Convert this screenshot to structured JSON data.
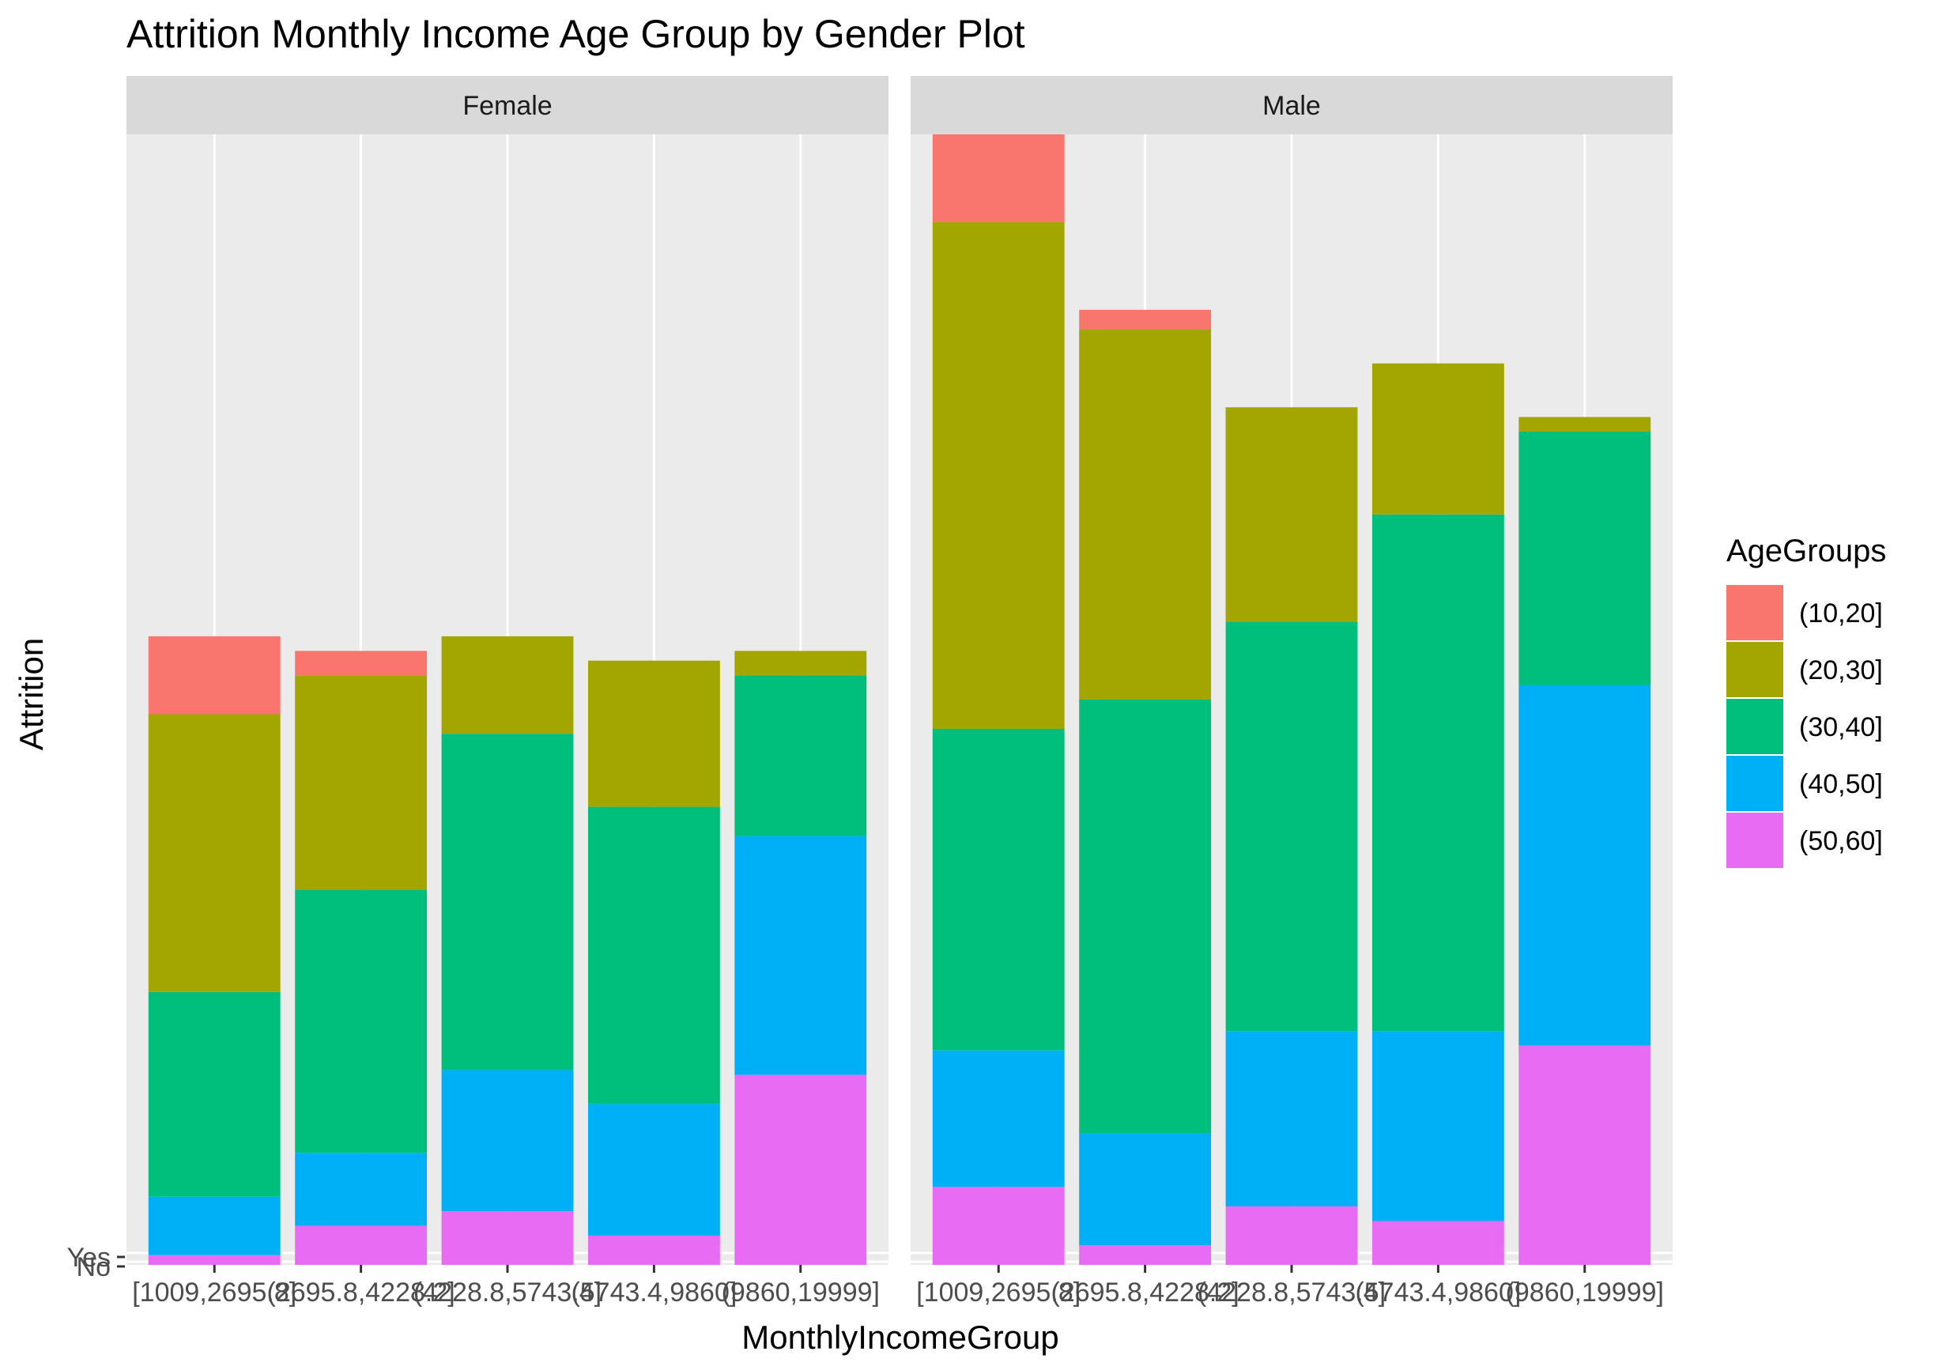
{
  "chart_data": {
    "type": "bar",
    "stacked": true,
    "title": "Attrition Monthly Income Age Group by Gender Plot",
    "xlabel": "MonthlyIncomeGroup",
    "ylabel": "Attrition",
    "y_tick_labels": [
      "No",
      "Yes"
    ],
    "facets": [
      "Female",
      "Male"
    ],
    "categories": [
      "[1009,2695.8]",
      "(2695.8,4228.2]",
      "(4228.8,5743.4]",
      "(5743.4,9860]",
      "(9860,19999]"
    ],
    "legend": {
      "title": "AgeGroups",
      "position": "right",
      "entries": [
        "(10,20]",
        "(20,30]",
        "(30,40]",
        "(40,50]",
        "(50,60]"
      ]
    },
    "colors": {
      "(10,20]": "#F8766D",
      "(20,30]": "#A3A500",
      "(30,40]": "#00BF7D",
      "(40,50]": "#00B0F6",
      "(50,60]": "#E76BF3"
    },
    "panel_background": "#EBEBEB",
    "strip_background": "#D9D9D9",
    "grid": true,
    "ylim": [
      0,
      116
    ],
    "series": [
      {
        "facet": "Female",
        "values": {
          "(50,60]": [
            1,
            4,
            5.5,
            3,
            19.5
          ],
          "(40,50]": [
            6,
            7.5,
            14.5,
            13.5,
            24.5
          ],
          "(30,40]": [
            21,
            27,
            34.5,
            30.5,
            16.5
          ],
          "(20,30]": [
            28.5,
            22,
            10,
            15,
            2.5
          ],
          "(10,20]": [
            8,
            2.5,
            0,
            0,
            0
          ]
        }
      },
      {
        "facet": "Male",
        "values": {
          "(50,60]": [
            8,
            2,
            6,
            4.5,
            22.5
          ],
          "(40,50]": [
            14,
            11.5,
            18,
            19.5,
            37
          ],
          "(30,40]": [
            33,
            44.5,
            42,
            53,
            26
          ],
          "(20,30]": [
            52,
            38,
            22,
            15.5,
            1.5
          ],
          "(10,20]": [
            9,
            2,
            0,
            0,
            0
          ]
        }
      }
    ]
  }
}
